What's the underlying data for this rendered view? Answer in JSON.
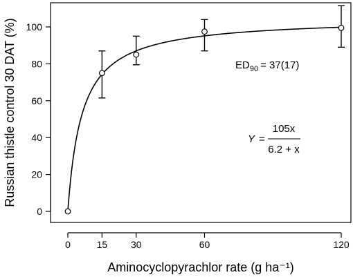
{
  "chart_data": {
    "type": "scatter",
    "title": "",
    "xlabel": "Aminocyclopyrachlor rate (g ha⁻¹)",
    "ylabel": "Russian thistle control 30 DAT (%)",
    "xlim": [
      0,
      120
    ],
    "ylim": [
      0,
      100
    ],
    "x_ticks": [
      0,
      15,
      30,
      60,
      120
    ],
    "y_ticks": [
      0,
      20,
      40,
      60,
      80,
      100
    ],
    "grid": false,
    "points": [
      {
        "x": 0,
        "y": 0
      },
      {
        "x": 15,
        "y": 75,
        "err_low": 61.5,
        "err_high": 87
      },
      {
        "x": 30,
        "y": 85,
        "err_low": 79.5,
        "err_high": 95
      },
      {
        "x": 60,
        "y": 97.5,
        "err_low": 87,
        "err_high": 104
      },
      {
        "x": 120,
        "y": 99.5,
        "err_low": 89,
        "err_high": 111.5
      }
    ],
    "fit": {
      "model": "rectangular-hyperbola",
      "a": 105,
      "b": 6.2,
      "equation": {
        "lhs": "Y",
        "numerator": "105x",
        "denominator": "6.2 + x"
      }
    },
    "annotations": {
      "ed_label": "ED",
      "ed_subscript": "90",
      "ed_value": "= 37(17)"
    }
  }
}
